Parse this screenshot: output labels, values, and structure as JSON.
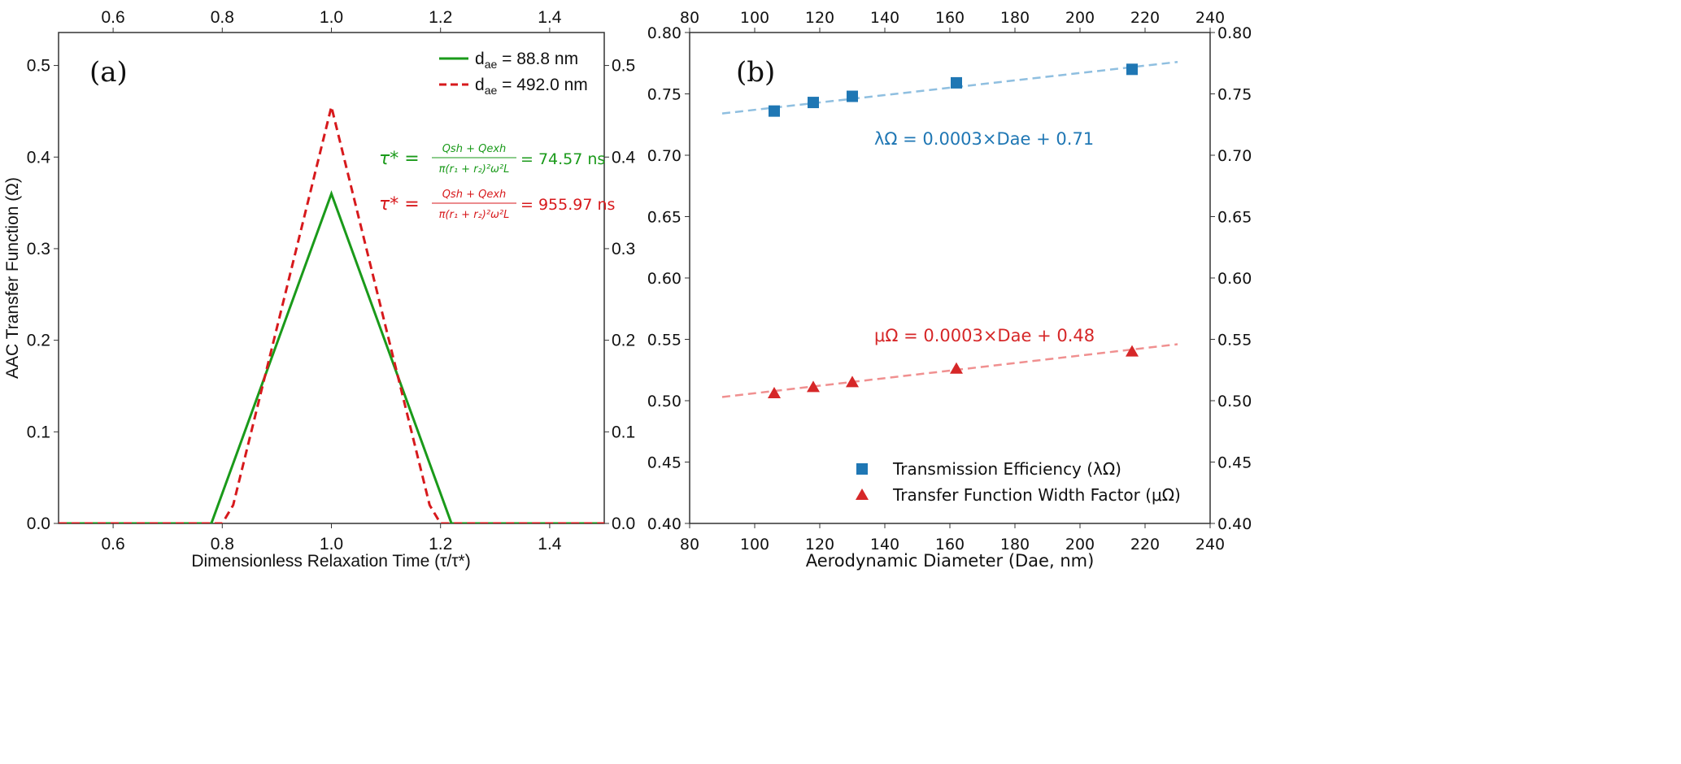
{
  "chart_data": [
    {
      "type": "line",
      "panel_label": "(a)",
      "xlabel": "Dimensionless Relaxation Time (τ/τ*)",
      "ylabel": "AAC Transfer Function (Ω)",
      "xlim": [
        0.5,
        1.5
      ],
      "ylim": [
        0,
        0.536
      ],
      "xticks": [
        0.6,
        0.8,
        1.0,
        1.2,
        1.4
      ],
      "xtick_labels": [
        "0.6",
        "0.8",
        "1.0",
        "1.2",
        "1.4"
      ],
      "yticks": [
        0,
        0.1,
        0.2,
        0.3,
        0.4,
        0.5
      ],
      "ytick_labels": [
        "0.0",
        "0.1",
        "0.2",
        "0.3",
        "0.4",
        "0.5"
      ],
      "grid": false,
      "legend_position": "top-right",
      "series": [
        {
          "name": "dae = 88.8 nm",
          "legend_base": "d",
          "legend_sub": "ae",
          "legend_rest": " = 88.8 nm",
          "color": "#1a9a1a",
          "style": "solid",
          "x": [
            0.5,
            0.78,
            1.0,
            1.22,
            1.5
          ],
          "y": [
            0,
            0,
            0.36,
            0,
            0
          ]
        },
        {
          "name": "dae = 492.0 nm",
          "legend_base": "d",
          "legend_sub": "ae",
          "legend_rest": " = 492.0 nm",
          "color": "#d7191c",
          "style": "dashed",
          "x": [
            0.5,
            0.8,
            0.82,
            1.0,
            1.18,
            1.2,
            1.5
          ],
          "y": [
            0,
            0,
            0.02,
            0.455,
            0.02,
            0,
            0
          ]
        }
      ],
      "annotations": [
        {
          "lhs": "τ* =",
          "numerator": "Qsh + Qexh",
          "denominator": "π(r₁ + r₂)²ω²L",
          "rhs": "= 74.57 ns",
          "color": "#1a9a1a"
        },
        {
          "lhs": "τ* =",
          "numerator": "Qsh + Qexh",
          "denominator": "π(r₁ + r₂)²ω²L",
          "rhs": "= 955.97 ns",
          "color": "#d7191c"
        }
      ]
    },
    {
      "type": "scatter",
      "panel_label": "(b)",
      "xlabel": "Aerodynamic Diameter (Dae, nm)",
      "ylabel": "",
      "xlim": [
        80,
        240
      ],
      "ylim": [
        0.4,
        0.8
      ],
      "xticks": [
        80,
        100,
        120,
        140,
        160,
        180,
        200,
        220,
        240
      ],
      "xtick_labels": [
        "80",
        "100",
        "120",
        "140",
        "160",
        "180",
        "200",
        "220",
        "240"
      ],
      "yticks": [
        0.4,
        0.45,
        0.5,
        0.55,
        0.6,
        0.65,
        0.7,
        0.75,
        0.8
      ],
      "ytick_labels": [
        "0.40",
        "0.45",
        "0.50",
        "0.55",
        "0.60",
        "0.65",
        "0.70",
        "0.75",
        "0.80"
      ],
      "grid": false,
      "legend_position": "bottom-center",
      "series": [
        {
          "name": "Transmission Efficiency (λΩ)",
          "marker": "square",
          "color": "#1f77b4",
          "fit_color": "#8fbfe0",
          "x": [
            106,
            118,
            130,
            162,
            216
          ],
          "y": [
            0.736,
            0.743,
            0.748,
            0.759,
            0.77
          ],
          "fit": {
            "slope": 0.0003,
            "intercept": 0.71,
            "x_range": [
              90,
              230
            ],
            "y_range": [
              0.734,
              0.776
            ]
          },
          "equation": "λΩ = 0.0003×Dae + 0.71"
        },
        {
          "name": "Transfer Function Width Factor (μΩ)",
          "marker": "triangle",
          "color": "#d62728",
          "fit_color": "#f09090",
          "x": [
            106,
            118,
            130,
            162,
            216
          ],
          "y": [
            0.506,
            0.511,
            0.515,
            0.526,
            0.54
          ],
          "fit": {
            "slope": 0.0003,
            "intercept": 0.48,
            "x_range": [
              90,
              230
            ],
            "y_range": [
              0.503,
              0.546
            ]
          },
          "equation": "μΩ = 0.0003×Dae + 0.48"
        }
      ]
    }
  ]
}
